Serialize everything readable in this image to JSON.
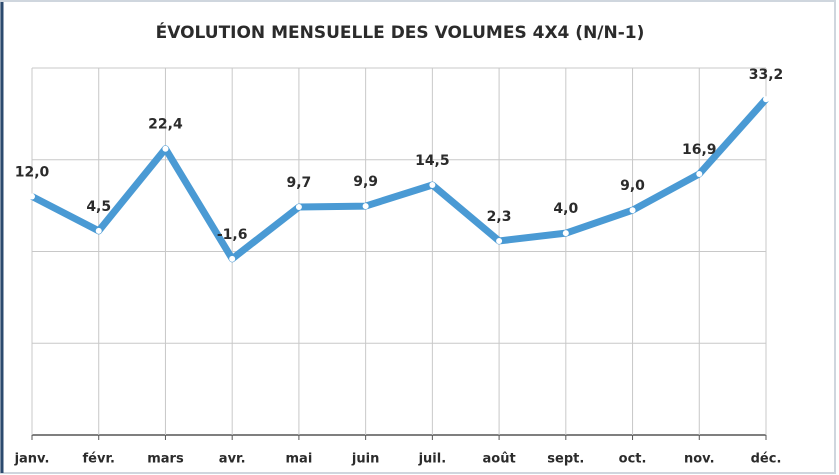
{
  "chart_data": {
    "type": "line",
    "title": "ÉVOLUTION MENSUELLE DES VOLUMES 4X4 (N/N-1)",
    "categories": [
      "janv.",
      "févr.",
      "mars",
      "avr.",
      "mai",
      "juin",
      "juil.",
      "août",
      "sept.",
      "oct.",
      "nov.",
      "déc."
    ],
    "series": [
      {
        "color": "#4a9ad4",
        "values": [
          12.0,
          4.5,
          22.4,
          -1.6,
          9.7,
          9.9,
          14.5,
          2.3,
          4.0,
          9.0,
          16.9,
          33.2
        ],
        "value_labels": [
          "12,0",
          "4,5",
          "22,4",
          "-1,6",
          "9,7",
          "9,9",
          "14,5",
          "2,3",
          "4,0",
          "9,0",
          "16,9",
          "33,2"
        ]
      }
    ],
    "ylim": [
      -40,
      40
    ],
    "yticks": [
      -40,
      -20,
      0,
      20,
      40
    ],
    "grid": true
  }
}
